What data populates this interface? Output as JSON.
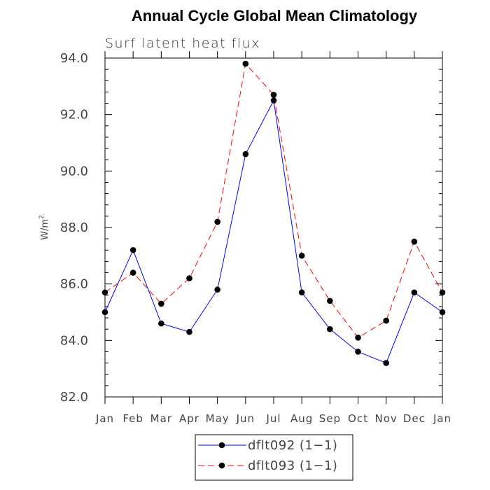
{
  "chart_data": {
    "type": "line",
    "title": "Annual Cycle Global Mean Climatology",
    "subtitle": "Surf latent heat flux",
    "ylabel": "W/m",
    "ylabel_superscript": "2",
    "ylim": [
      82.0,
      94.0
    ],
    "yticks": [
      "82.0",
      "84.0",
      "86.0",
      "88.0",
      "90.0",
      "92.0",
      "94.0"
    ],
    "categories": [
      "Jan",
      "Feb",
      "Mar",
      "Apr",
      "May",
      "Jun",
      "Jul",
      "Aug",
      "Sep",
      "Oct",
      "Nov",
      "Dec",
      "Jan"
    ],
    "legend_position": "bottom-center",
    "grid": false,
    "series": [
      {
        "name": "dflt092 (1−1)",
        "color": "#0000ff",
        "style": "solid",
        "values": [
          85.0,
          87.2,
          84.6,
          84.3,
          85.8,
          90.6,
          92.5,
          85.7,
          84.4,
          83.6,
          83.2,
          85.7,
          85.0
        ]
      },
      {
        "name": "dflt093 (1−1)",
        "color": "#ff0000",
        "style": "dashed",
        "values": [
          85.7,
          86.4,
          85.3,
          86.2,
          88.2,
          93.8,
          92.7,
          87.0,
          85.4,
          84.1,
          84.7,
          87.5,
          85.7
        ]
      }
    ]
  }
}
